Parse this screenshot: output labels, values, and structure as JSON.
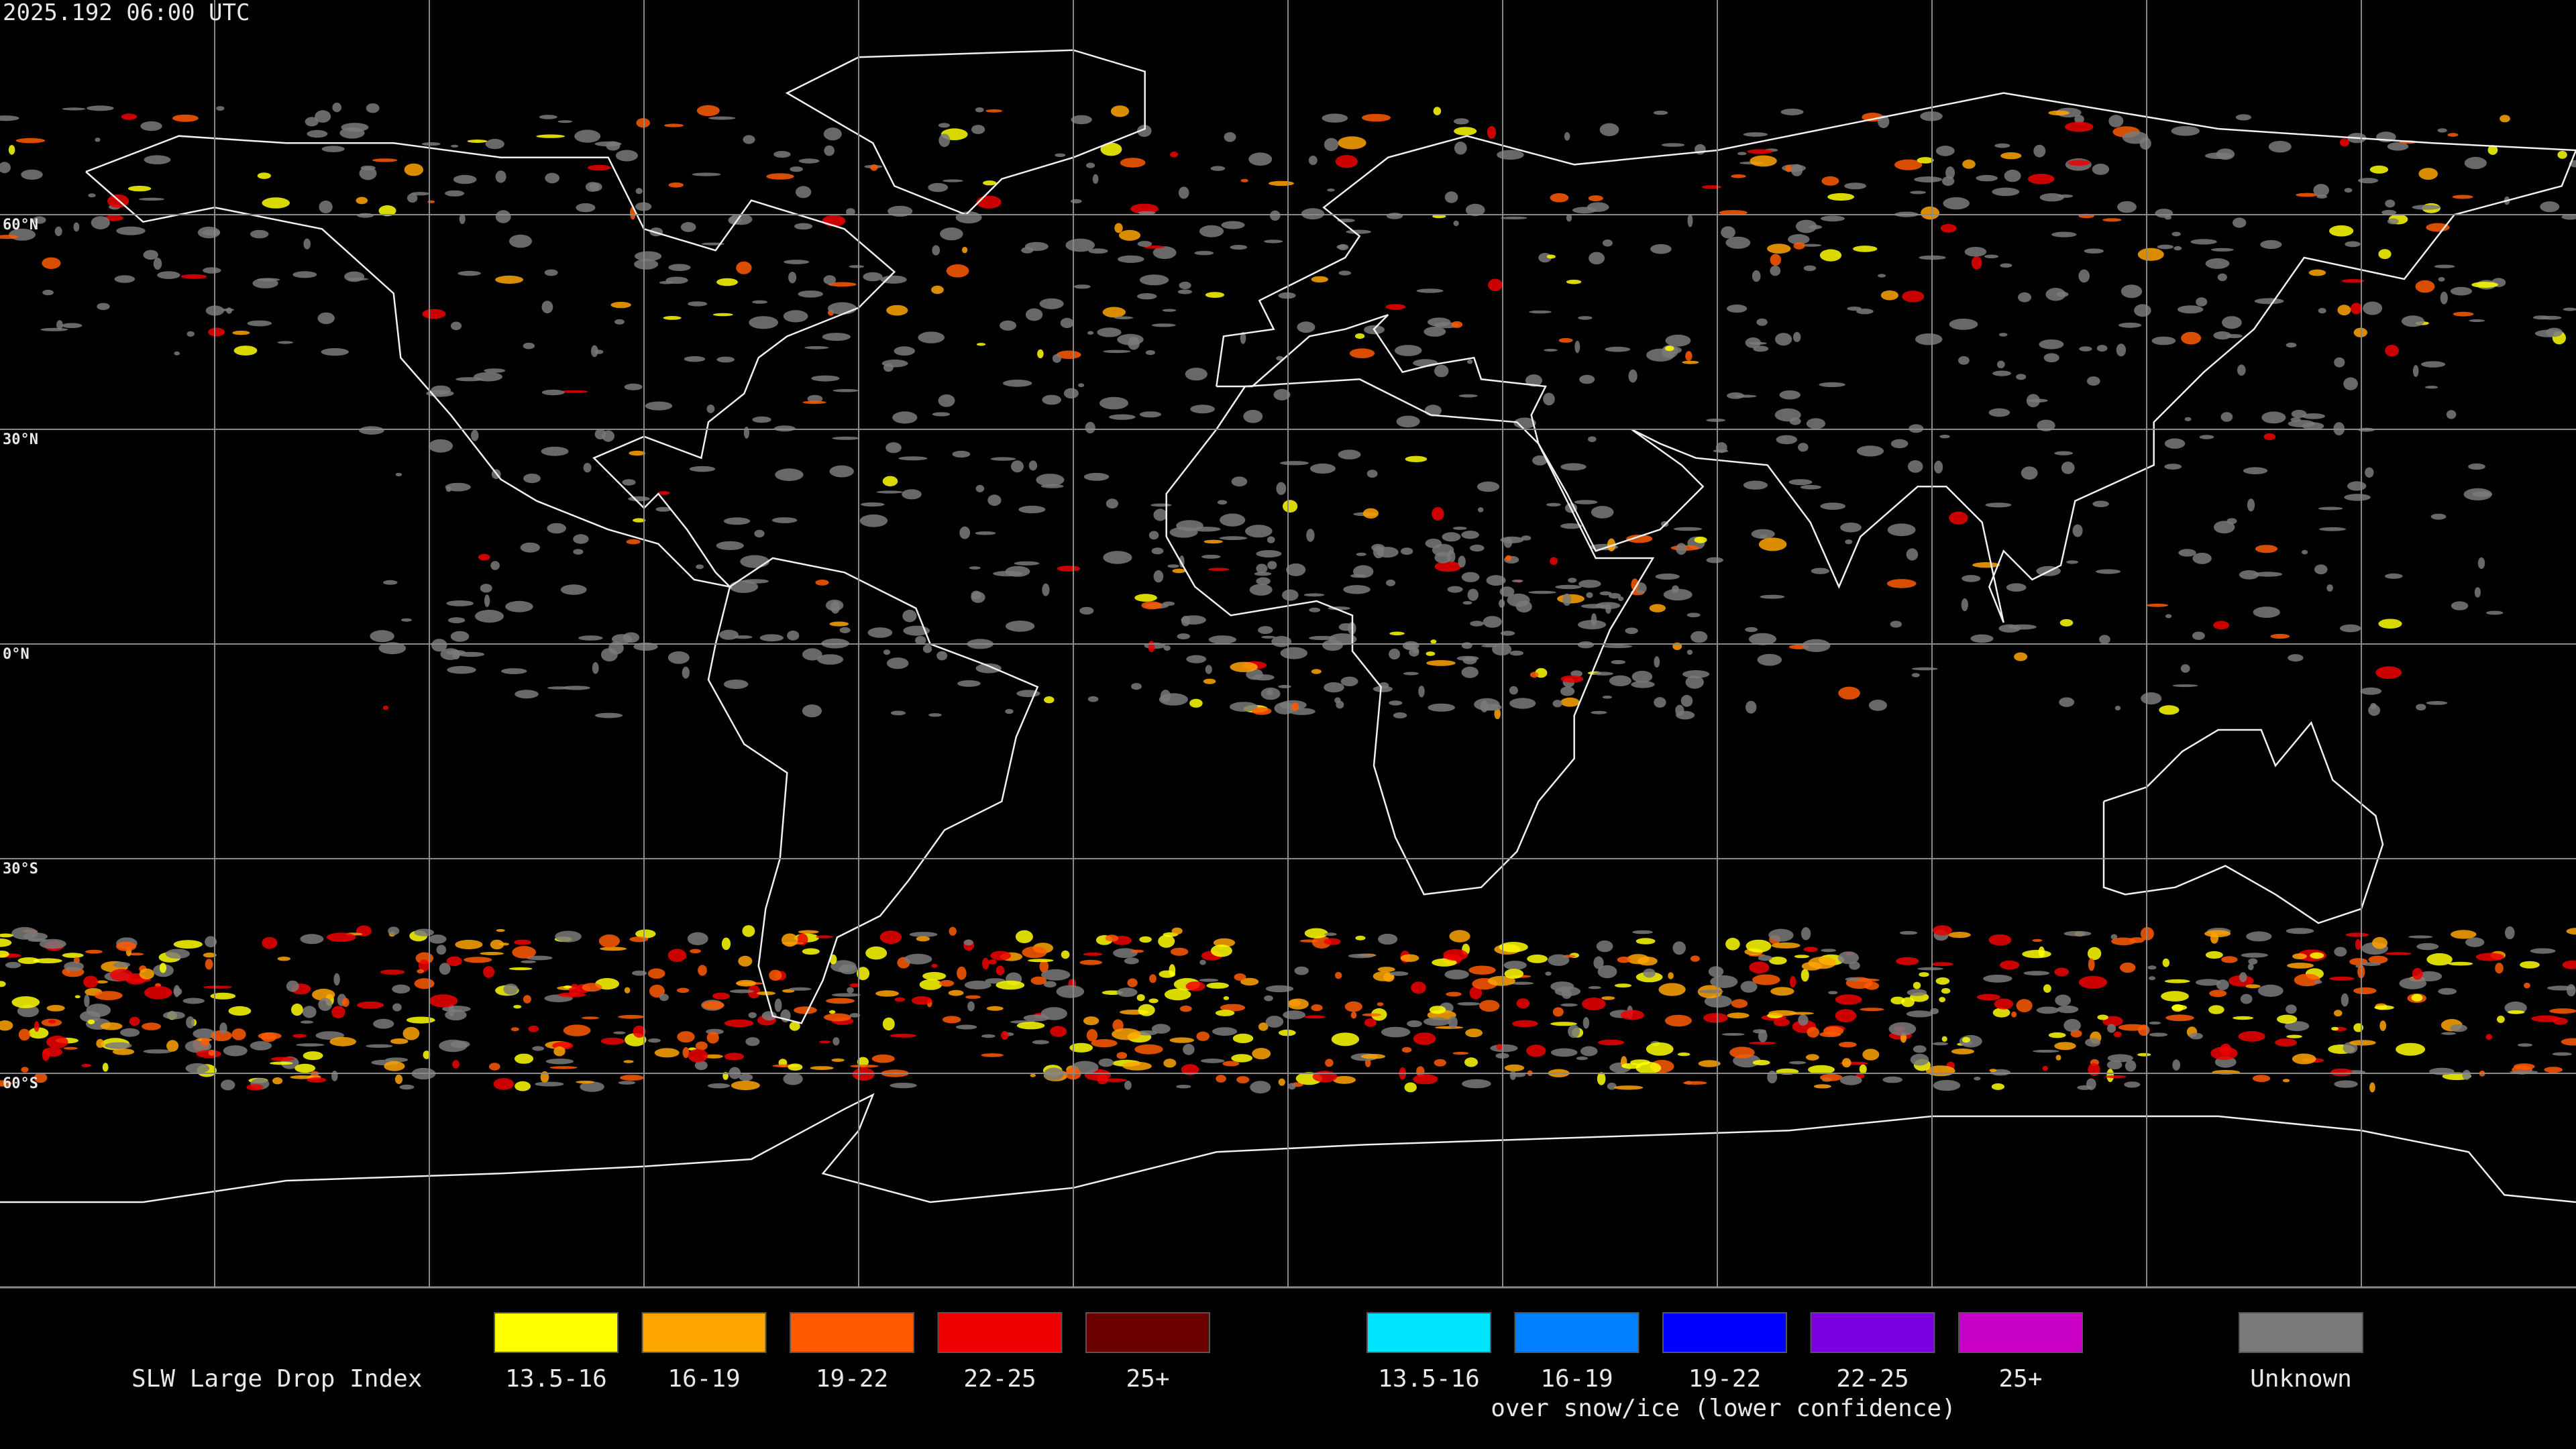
{
  "header": {
    "timestamp": "2025.192 06:00 UTC"
  },
  "map": {
    "latitude_labels": [
      "60°N",
      "30°N",
      "0°N",
      "30°S",
      "60°S"
    ]
  },
  "legend": {
    "title": "SLW Large Drop Index",
    "main": [
      {
        "label": "13.5-16",
        "color": "#ffff00"
      },
      {
        "label": "16-19",
        "color": "#ffa500"
      },
      {
        "label": "19-22",
        "color": "#ff5a00"
      },
      {
        "label": "22-25",
        "color": "#ee0000"
      },
      {
        "label": "25+",
        "color": "#6a0000"
      }
    ],
    "snow_ice": [
      {
        "label": "13.5-16",
        "color": "#00e5ff"
      },
      {
        "label": "16-19",
        "color": "#0080ff"
      },
      {
        "label": "19-22",
        "color": "#0000ff"
      },
      {
        "label": "22-25",
        "color": "#7a00e0"
      },
      {
        "label": "25+",
        "color": "#c800c8"
      }
    ],
    "snow_ice_caption": "over snow/ice (lower confidence)",
    "unknown": {
      "label": "Unknown",
      "color": "#7a7a7a"
    }
  }
}
